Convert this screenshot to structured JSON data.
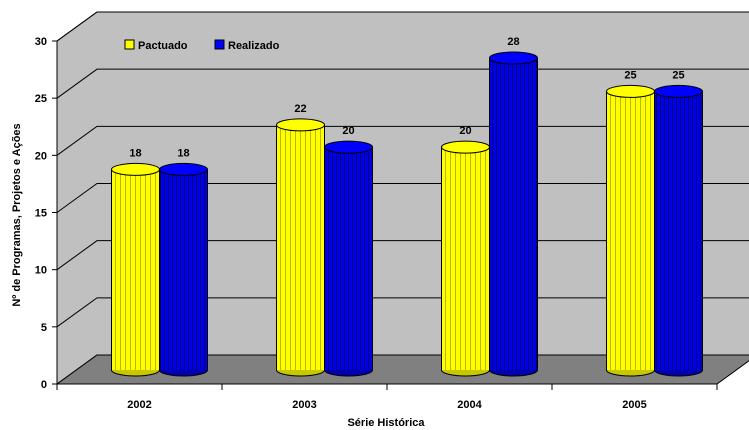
{
  "chart_data": {
    "type": "bar",
    "style": "3d-cylinder",
    "categories": [
      "2002",
      "2003",
      "2004",
      "2005"
    ],
    "series": [
      {
        "name": "Pactuado",
        "values": [
          18,
          22,
          20,
          25
        ],
        "color": "#ffff00"
      },
      {
        "name": "Realizado",
        "values": [
          18,
          20,
          28,
          25
        ],
        "color": "#0000ff"
      }
    ],
    "xlabel": "Série Histórica",
    "ylabel": "Nº de Programas, Projetos e Ações",
    "ylim": [
      0,
      30
    ],
    "yticks": [
      0,
      5,
      10,
      15,
      20,
      25,
      30
    ],
    "grid": true,
    "legend_position": "top-left",
    "colors": {
      "wall": "#c0c0c0",
      "floor": "#808080",
      "grid": "#000000"
    }
  }
}
